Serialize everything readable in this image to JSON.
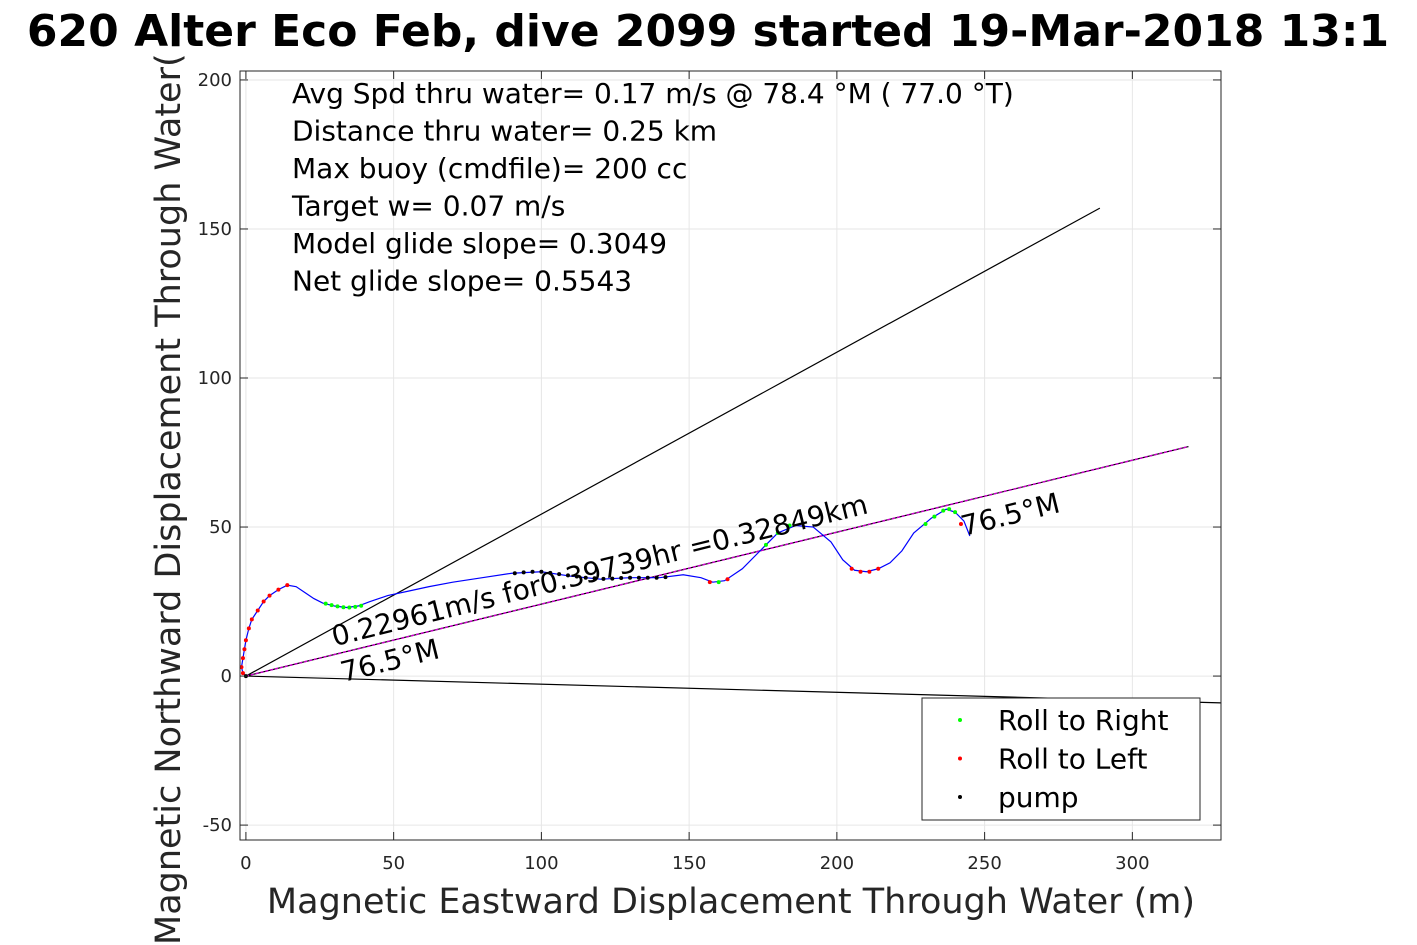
{
  "chart_data": {
    "type": "scatter",
    "title": "620 Alter Eco Feb, dive 2099 started 19-Mar-2018 13:1",
    "xlabel": "Magnetic Eastward Displacement Through Water (m)",
    "ylabel": "Magnetic Northward Displacement Through Water(",
    "xlim": [
      -2,
      330
    ],
    "ylim": [
      -55,
      203
    ],
    "x_ticks": [
      0,
      50,
      100,
      150,
      200,
      250,
      300
    ],
    "y_ticks": [
      -50,
      0,
      50,
      100,
      150,
      200
    ],
    "grid": true,
    "info_lines": [
      "Avg Spd thru water=  0.17 m/s @  78.4 °M ( 77.0 °T)",
      "Distance thru water=  0.25 km",
      "Max buoy (cmdfile)= 200 cc",
      "Target w= 0.07 m/s",
      "Model glide slope= 0.3049",
      "Net glide slope= 0.5543"
    ],
    "annotations": [
      {
        "text": "0.22961m/s for0.39739hr =0.32849km",
        "x": 30,
        "y": 10,
        "rotation_deg": 14
      },
      {
        "text": "76.5°M",
        "x": 33,
        "y": -2,
        "rotation_deg": 14
      },
      {
        "text": "76.5°M",
        "x": 243,
        "y": 47,
        "rotation_deg": 14
      }
    ],
    "lines": [
      {
        "name": "cone_upper",
        "color": "#000000",
        "points": [
          [
            0,
            0
          ],
          [
            289,
            157
          ]
        ]
      },
      {
        "name": "cone_lower",
        "color": "#000000",
        "points": [
          [
            0,
            0
          ],
          [
            330,
            -9
          ]
        ]
      },
      {
        "name": "net_direction",
        "color": "#000000",
        "points": [
          [
            0,
            0
          ],
          [
            319,
            77
          ]
        ]
      },
      {
        "name": "net_direction_overlay",
        "color": "#cc00cc",
        "points": [
          [
            0,
            0
          ],
          [
            319,
            77
          ]
        ]
      }
    ],
    "track": {
      "color": "#0000ff",
      "points": [
        [
          0,
          0
        ],
        [
          -1,
          1
        ],
        [
          -1.5,
          3
        ],
        [
          -1,
          6
        ],
        [
          -0.5,
          9
        ],
        [
          0,
          12
        ],
        [
          1,
          16
        ],
        [
          2,
          19
        ],
        [
          4,
          22
        ],
        [
          6,
          25
        ],
        [
          8,
          27
        ],
        [
          11,
          29
        ],
        [
          14,
          30.5
        ],
        [
          17,
          30
        ],
        [
          20,
          28
        ],
        [
          23,
          26
        ],
        [
          26,
          24.5
        ],
        [
          30,
          23.5
        ],
        [
          34,
          23
        ],
        [
          38,
          23.5
        ],
        [
          42,
          25
        ],
        [
          48,
          27
        ],
        [
          55,
          28.5
        ],
        [
          62,
          30
        ],
        [
          70,
          31.5
        ],
        [
          80,
          33
        ],
        [
          90,
          34.5
        ],
        [
          100,
          35
        ],
        [
          110,
          33.5
        ],
        [
          120,
          32.5
        ],
        [
          130,
          33
        ],
        [
          140,
          33
        ],
        [
          148,
          34
        ],
        [
          154,
          33
        ],
        [
          158,
          31.5
        ],
        [
          162,
          32
        ],
        [
          168,
          36
        ],
        [
          174,
          42
        ],
        [
          180,
          48
        ],
        [
          186,
          50.5
        ],
        [
          192,
          50
        ],
        [
          198,
          45
        ],
        [
          202,
          39
        ],
        [
          206,
          35.5
        ],
        [
          210,
          35
        ],
        [
          214,
          36
        ],
        [
          218,
          38
        ],
        [
          222,
          42
        ],
        [
          226,
          48
        ],
        [
          232,
          53
        ],
        [
          237,
          56
        ],
        [
          240,
          55
        ],
        [
          243,
          52
        ],
        [
          245,
          47
        ]
      ]
    },
    "series": [
      {
        "name": "Roll to Right",
        "color": "#00ff00",
        "points": [
          [
            27,
            24.3
          ],
          [
            29,
            23.8
          ],
          [
            31,
            23.4
          ],
          [
            33,
            23.1
          ],
          [
            35,
            23
          ],
          [
            37,
            23.2
          ],
          [
            39,
            23.6
          ],
          [
            160,
            31.5
          ],
          [
            176,
            44
          ],
          [
            180,
            48
          ],
          [
            184,
            50.5
          ],
          [
            230,
            51
          ],
          [
            233,
            53.5
          ],
          [
            236,
            55.5
          ],
          [
            238,
            56
          ],
          [
            240,
            55
          ]
        ]
      },
      {
        "name": "Roll to Left",
        "color": "#ff0000",
        "points": [
          [
            -1,
            1
          ],
          [
            -1.5,
            3
          ],
          [
            -1,
            6
          ],
          [
            -0.5,
            9
          ],
          [
            0,
            12
          ],
          [
            1,
            16
          ],
          [
            2,
            19
          ],
          [
            4,
            22
          ],
          [
            6,
            25
          ],
          [
            8,
            27
          ],
          [
            11,
            29
          ],
          [
            14,
            30.5
          ],
          [
            157,
            31.5
          ],
          [
            163,
            32.5
          ],
          [
            205,
            36
          ],
          [
            208,
            35
          ],
          [
            211,
            35
          ],
          [
            214,
            36
          ],
          [
            242,
            51
          ]
        ]
      },
      {
        "name": "pump",
        "color": "#000000",
        "points": [
          [
            91,
            34.5
          ],
          [
            94,
            34.8
          ],
          [
            97,
            35
          ],
          [
            100,
            35
          ],
          [
            103,
            34.6
          ],
          [
            106,
            34.2
          ],
          [
            109,
            33.8
          ],
          [
            112,
            33.4
          ],
          [
            115,
            33
          ],
          [
            118,
            32.8
          ],
          [
            121,
            32.6
          ],
          [
            124,
            32.7
          ],
          [
            127,
            32.9
          ],
          [
            130,
            33
          ],
          [
            133,
            33
          ],
          [
            136,
            33
          ],
          [
            139,
            33
          ],
          [
            142,
            33.2
          ],
          [
            0,
            0
          ]
        ]
      }
    ],
    "legend": {
      "position": "bottom-right",
      "entries": [
        {
          "label": "Roll to Right",
          "color": "#00ff00"
        },
        {
          "label": "Roll to Left",
          "color": "#ff0000"
        },
        {
          "label": "pump",
          "color": "#000000"
        }
      ]
    }
  }
}
